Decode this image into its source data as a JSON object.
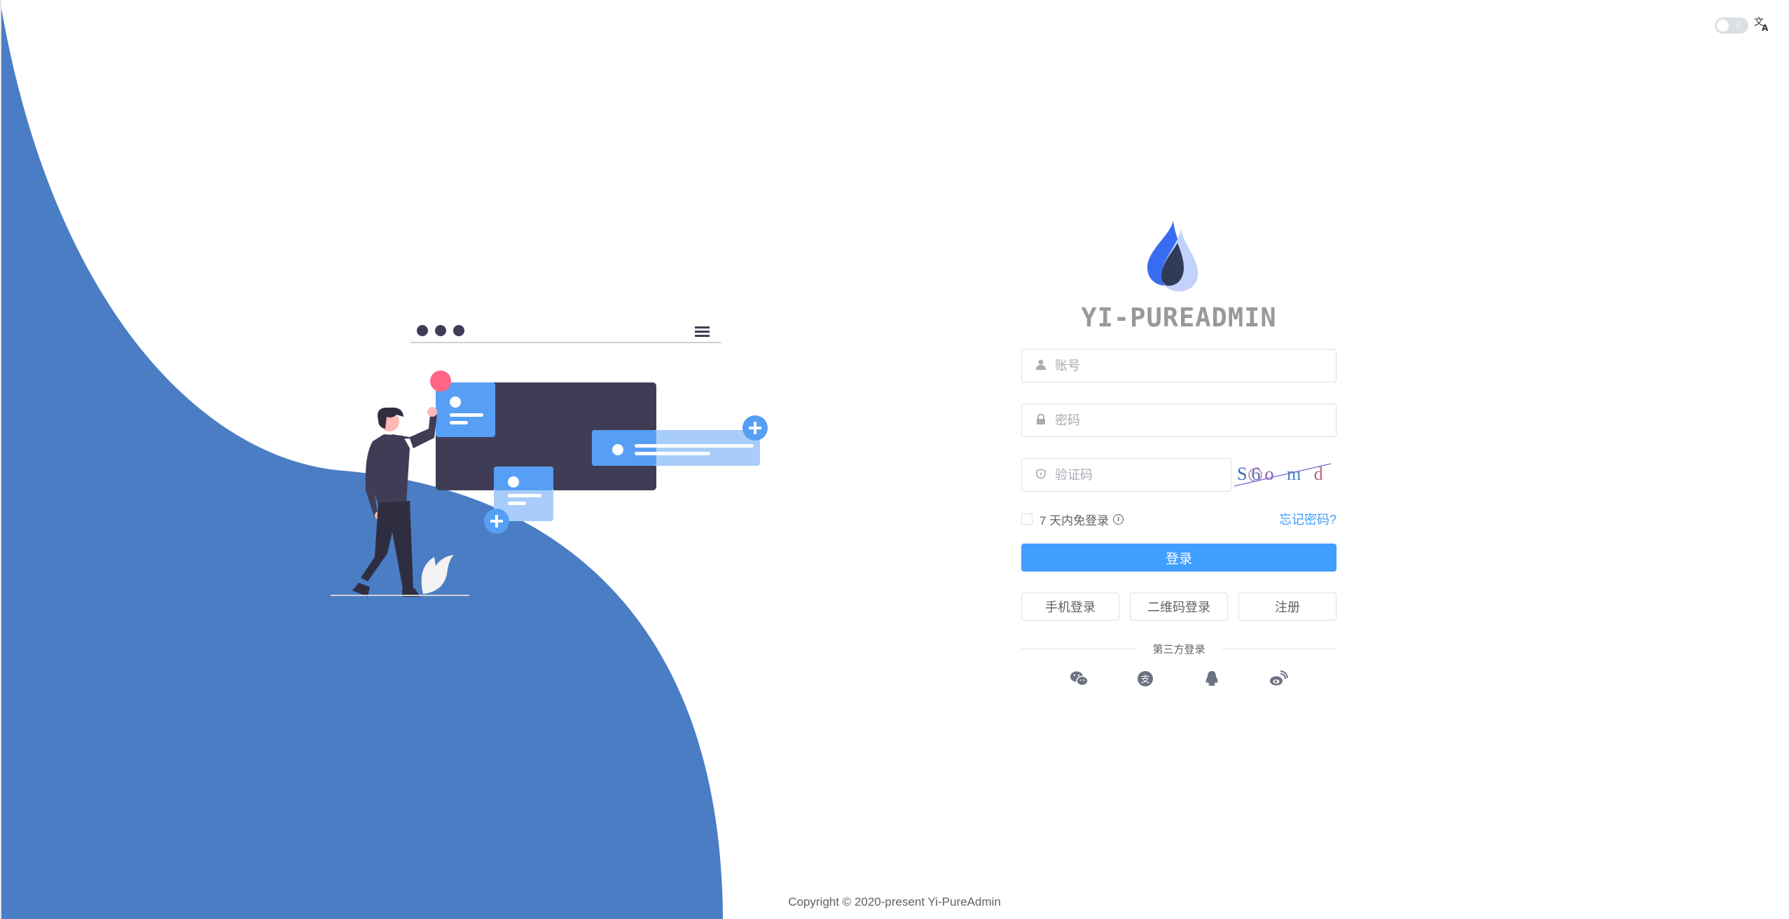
{
  "header": {
    "theme_toggle": {
      "state": "light",
      "icon": "moon-icon"
    },
    "language_icon": "translate-icon"
  },
  "brand": {
    "title": "YI-PUREADMIN",
    "colors": {
      "drop_primary": "#396DF1",
      "drop_secondary": "#C3D2FB",
      "drop_overlap": "#2F3C58"
    }
  },
  "illustration": {
    "background_color": "#4A7DC4"
  },
  "form": {
    "username_placeholder": "账号",
    "username_value": "",
    "password_placeholder": "密码",
    "password_value": "",
    "captcha_placeholder": "验证码",
    "captcha_value": "",
    "captcha_image_text": "S6o m d",
    "remember_label": "7 天内免登录",
    "remember_checked": false,
    "forgot_label": "忘记密码?",
    "login_label": "登录",
    "phone_login_label": "手机登录",
    "qr_login_label": "二维码登录",
    "register_label": "注册",
    "third_party_label": "第三方登录",
    "accent_color": "#409EFF"
  },
  "social": [
    {
      "name": "wechat",
      "icon": "wechat-icon"
    },
    {
      "name": "alipay",
      "icon": "alipay-icon"
    },
    {
      "name": "qq",
      "icon": "qq-icon"
    },
    {
      "name": "weibo",
      "icon": "weibo-icon"
    }
  ],
  "footer": {
    "copyright": "Copyright © 2020-present Yi-PureAdmin"
  }
}
